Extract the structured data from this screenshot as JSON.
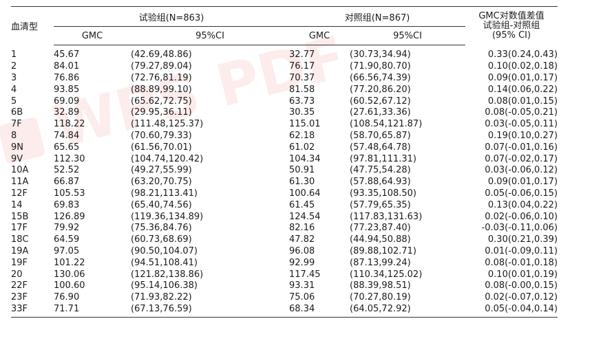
{
  "watermark": {
    "text": "WPS PDF",
    "color": "#e8534a"
  },
  "table": {
    "header": {
      "serotype": "血清型",
      "group_test": "试验组(N=863)",
      "group_control": "对照组(N=867)",
      "diff_line1": "GMC对数值差值",
      "diff_line2": "试验组-对照组",
      "diff_line3": "(95% CI)",
      "gmc": "GMC",
      "ci": "95%CI"
    },
    "rows": [
      {
        "serotype": "1",
        "test_gmc": "45.67",
        "test_ci": "(42.69,48.86)",
        "ctrl_gmc": "32.77",
        "ctrl_ci": "(30.73,34.94)",
        "diff": "0.33(0.24,0.43)"
      },
      {
        "serotype": "2",
        "test_gmc": "84.01",
        "test_ci": "(79.27,89.04)",
        "ctrl_gmc": "76.17",
        "ctrl_ci": "(71.90,80.70)",
        "diff": "0.10(0.02,0.18)"
      },
      {
        "serotype": "3",
        "test_gmc": "76.86",
        "test_ci": "(72.76,81.19)",
        "ctrl_gmc": "70.37",
        "ctrl_ci": "(66.56,74.39)",
        "diff": "0.09(0.01,0.17)"
      },
      {
        "serotype": "4",
        "test_gmc": "93.85",
        "test_ci": "(88.89,99.10)",
        "ctrl_gmc": "81.58",
        "ctrl_ci": "(77.20,86.20)",
        "diff": "0.14(0.06,0.22)"
      },
      {
        "serotype": "5",
        "test_gmc": "69.09",
        "test_ci": "(65.62,72.75)",
        "ctrl_gmc": "63.73",
        "ctrl_ci": "(60.52,67.12)",
        "diff": "0.08(0.01,0.15)"
      },
      {
        "serotype": "6B",
        "test_gmc": "32.89",
        "test_ci": "(29.95,36.11)",
        "ctrl_gmc": "30.35",
        "ctrl_ci": "(27.61,33.36)",
        "diff": "0.08(-0.05,0.21)"
      },
      {
        "serotype": "7F",
        "test_gmc": "118.22",
        "test_ci": "(111.48,125.37)",
        "ctrl_gmc": "115.01",
        "ctrl_ci": "(108.54,121.87)",
        "diff": "0.03(-0.05,0.11)"
      },
      {
        "serotype": "8",
        "test_gmc": "74.84",
        "test_ci": "(70.60,79.33)",
        "ctrl_gmc": "62.18",
        "ctrl_ci": "(58.70,65.87)",
        "diff": "0.19(0.10,0.27)"
      },
      {
        "serotype": "9N",
        "test_gmc": "65.65",
        "test_ci": "(61.56,70.01)",
        "ctrl_gmc": "61.02",
        "ctrl_ci": "(57.48,64.78)",
        "diff": "0.07(-0.01,0.16)"
      },
      {
        "serotype": "9V",
        "test_gmc": "112.30",
        "test_ci": "(104.74,120.42)",
        "ctrl_gmc": "104.34",
        "ctrl_ci": "(97.81,111.31)",
        "diff": "0.07(-0.02,0.17)"
      },
      {
        "serotype": "10A",
        "test_gmc": "52.52",
        "test_ci": "(49.27,55.99)",
        "ctrl_gmc": "50.91",
        "ctrl_ci": "(47.75,54.28)",
        "diff": "0.03(-0.06,0.12)"
      },
      {
        "serotype": "11A",
        "test_gmc": "66.87",
        "test_ci": "(63.20,70.75)",
        "ctrl_gmc": "61.30",
        "ctrl_ci": "(57.88,64.93)",
        "diff": "0.09(0.01,0.17)"
      },
      {
        "serotype": "12F",
        "test_gmc": "105.53",
        "test_ci": "(98.21,113.41)",
        "ctrl_gmc": "100.64",
        "ctrl_ci": "(93.35,108.50)",
        "diff": "0.05(-0.06,0.15)"
      },
      {
        "serotype": "14",
        "test_gmc": "69.83",
        "test_ci": "(65.40,74.56)",
        "ctrl_gmc": "61.45",
        "ctrl_ci": "(57.79,65.35)",
        "diff": "0.13(0.04,0.22)"
      },
      {
        "serotype": "15B",
        "test_gmc": "126.89",
        "test_ci": "(119.36,134.89)",
        "ctrl_gmc": "124.54",
        "ctrl_ci": "(117.83,131.63)",
        "diff": "0.02(-0.06,0.10)"
      },
      {
        "serotype": "17F",
        "test_gmc": "79.92",
        "test_ci": "(75.36,84.76)",
        "ctrl_gmc": "82.16",
        "ctrl_ci": "(77.23,87.40)",
        "diff": "-0.03(-0.11,0.06)"
      },
      {
        "serotype": "18C",
        "test_gmc": "64.59",
        "test_ci": "(60.73,68.69)",
        "ctrl_gmc": "47.82",
        "ctrl_ci": "(44.94,50.88)",
        "diff": "0.30(0.21,0.39)"
      },
      {
        "serotype": "19A",
        "test_gmc": "97.05",
        "test_ci": "(90.50,104.07)",
        "ctrl_gmc": "96.08",
        "ctrl_ci": "(89.88,102.71)",
        "diff": "0.01(-0.09,0.11)"
      },
      {
        "serotype": "19F",
        "test_gmc": "101.22",
        "test_ci": "(94.51,108.41)",
        "ctrl_gmc": "92.99",
        "ctrl_ci": "(87.13,99.24)",
        "diff": "0.08(-0.01,0.18)"
      },
      {
        "serotype": "20",
        "test_gmc": "130.06",
        "test_ci": "(121.82,138.86)",
        "ctrl_gmc": "117.45",
        "ctrl_ci": "(110.34,125.02)",
        "diff": "0.10(0.01,0.19)"
      },
      {
        "serotype": "22F",
        "test_gmc": "100.60",
        "test_ci": "(95.14,106.38)",
        "ctrl_gmc": "93.31",
        "ctrl_ci": "(88.39,98.51)",
        "diff": "0.08(-0.00,0.15)"
      },
      {
        "serotype": "23F",
        "test_gmc": "76.90",
        "test_ci": "(71.93,82.22)",
        "ctrl_gmc": "75.06",
        "ctrl_ci": "(70.27,80.19)",
        "diff": "0.02(-0.07,0.12)"
      },
      {
        "serotype": "33F",
        "test_gmc": "71.71",
        "test_ci": "(67.13,76.59)",
        "ctrl_gmc": "68.34",
        "ctrl_ci": "(64.05,72.92)",
        "diff": "0.05(-0.04,0.14)"
      }
    ]
  }
}
